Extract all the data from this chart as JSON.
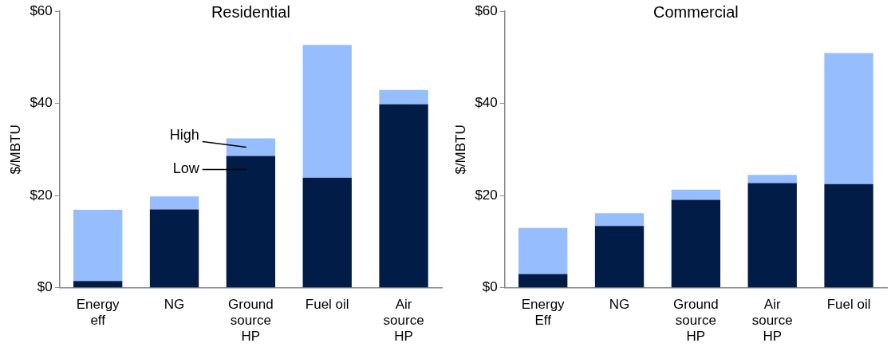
{
  "chart_data": [
    {
      "type": "bar",
      "title": "Residential",
      "ylabel": "$/MBTU",
      "stacked": true,
      "grid": false,
      "legend": false,
      "categories": [
        "Energy eff",
        "NG",
        "Ground source HP",
        "Fuel oil",
        "Air source HP"
      ],
      "series": [
        {
          "color": "#021c48",
          "values": [
            1.5,
            17.0,
            28.6,
            23.9,
            39.8
          ]
        },
        {
          "color": "#96bdfd",
          "values": [
            15.4,
            2.8,
            3.8,
            28.8,
            3.1
          ]
        }
      ],
      "ylim": [
        0,
        60
      ],
      "yticks": [
        {
          "value": 0,
          "label": "$0"
        },
        {
          "value": 20,
          "label": "$20"
        },
        {
          "value": 40,
          "label": "$40"
        },
        {
          "value": 60,
          "label": "$60"
        }
      ],
      "annotations": [
        "High",
        "Low"
      ]
    },
    {
      "type": "bar",
      "title": "Commercial",
      "ylabel": "$/MBTU",
      "stacked": true,
      "grid": false,
      "legend": false,
      "categories": [
        "Energy Eff",
        "NG",
        "Ground source HP",
        "Air source HP",
        "Fuel oil"
      ],
      "series": [
        {
          "color": "#021c48",
          "values": [
            3.0,
            13.4,
            19.1,
            22.7,
            22.5
          ]
        },
        {
          "color": "#96bdfd",
          "values": [
            10.0,
            2.8,
            2.2,
            1.8,
            28.4
          ]
        }
      ],
      "ylim": [
        0,
        60
      ],
      "yticks": [
        {
          "value": 0,
          "label": "$0"
        },
        {
          "value": 20,
          "label": "$20"
        },
        {
          "value": 40,
          "label": "$40"
        },
        {
          "value": 60,
          "label": "$60"
        }
      ]
    }
  ]
}
